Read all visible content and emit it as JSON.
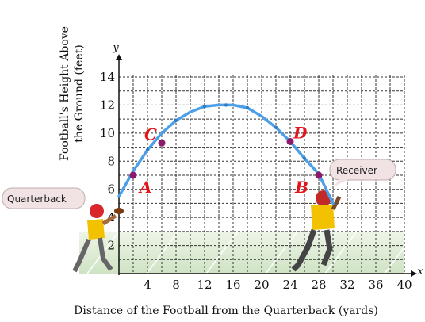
{
  "chart_data": {
    "type": "line",
    "xlabel": "Distance of the Football from the Quarterback (yards)",
    "ylabel_line1": "Football's Height Above",
    "ylabel_line2": "the Ground (feet)",
    "x_axis_letter": "x",
    "y_axis_letter": "y",
    "xlim": [
      0,
      40
    ],
    "ylim": [
      0,
      14
    ],
    "x_ticks": [
      4,
      8,
      12,
      16,
      20,
      24,
      28,
      32,
      36,
      40
    ],
    "y_ticks": [
      2,
      4,
      6,
      8,
      10,
      12,
      14
    ],
    "grid": true,
    "series": [
      {
        "x": [
          0,
          2,
          4,
          6,
          8,
          10,
          12,
          14,
          15,
          16,
          18,
          20,
          22,
          24,
          26,
          28,
          30
        ],
        "y": [
          5.5,
          7.3,
          8.8,
          10.0,
          10.9,
          11.5,
          11.9,
          12.0,
          12.0,
          12.0,
          11.8,
          11.2,
          10.4,
          9.4,
          8.2,
          7.1,
          5.0
        ]
      }
    ],
    "points": [
      {
        "label": "A",
        "x": 2,
        "y": 7.0
      },
      {
        "label": "C",
        "x": 6,
        "y": 9.3
      },
      {
        "label": "D",
        "x": 24,
        "y": 9.4
      },
      {
        "label": "B",
        "x": 28,
        "y": 7.0
      }
    ],
    "colors": {
      "curve": "#4da0e8",
      "point": "#8b1a6b",
      "label": "#e3141b",
      "field": "#d8ead0"
    }
  },
  "annotations": {
    "quarterback": "Quarterback",
    "receiver": "Receiver"
  }
}
